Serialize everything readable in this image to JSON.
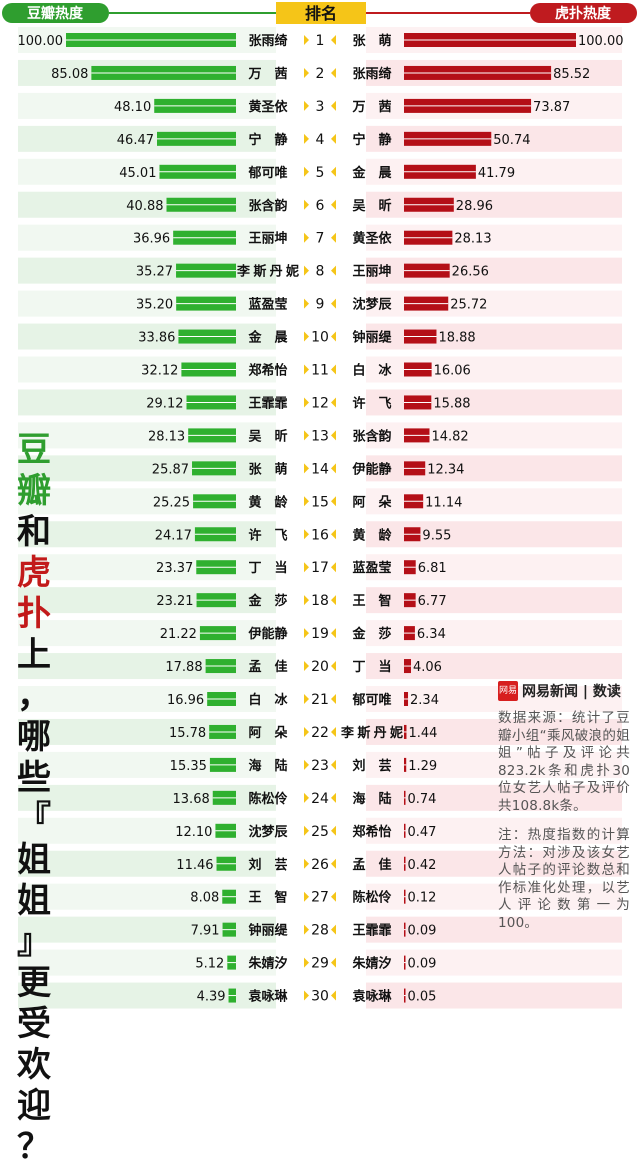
{
  "header": {
    "left_label": "豆瓣热度",
    "center_label": "排名",
    "right_label": "虎扑热度"
  },
  "colors": {
    "douban_green": "#2fb02f",
    "douban_header": "#2f9e2f",
    "hupu_red": "#b40f17",
    "hupu_header": "#bf1b1f",
    "rank_header": "#f5c518",
    "row_left_bg": "#e6f3e6",
    "row_right_bg": "#fbe6e8"
  },
  "title": {
    "segments": [
      {
        "text": "豆瓣",
        "color": "#2f9e2f"
      },
      {
        "text": "和",
        "color": "#111111"
      },
      {
        "text": "虎扑",
        "color": "#c21a1a"
      },
      {
        "text": "上，哪些『姐姐』更受欢迎？",
        "color": "#111111"
      }
    ]
  },
  "logo": {
    "mark": "网易",
    "text": "网易新闻 | 数读"
  },
  "source_text": "数据来源：统计了豆瓣小组“乘风破浪的姐姐”帖子及评论共823.2k条和虎扑30位女艺人帖子及评价共108.8k条。",
  "note_text": "注：热度指数的计算方法：对涉及该女艺人帖子的评论数总和作标准化处理，以艺人评论数第一为100。",
  "chart_data": {
    "type": "bar",
    "ranks": [
      1,
      2,
      3,
      4,
      5,
      6,
      7,
      8,
      9,
      10,
      11,
      12,
      13,
      14,
      15,
      16,
      17,
      18,
      19,
      20,
      21,
      22,
      23,
      24,
      25,
      26,
      27,
      28,
      29,
      30
    ],
    "series": [
      {
        "name": "豆瓣热度",
        "names": [
          "张雨绮",
          "万　茜",
          "黄圣依",
          "宁　静",
          "郁可唯",
          "张含韵",
          "王丽坤",
          "李斯丹妮",
          "蓝盈莹",
          "金　晨",
          "郑希怡",
          "王霏霏",
          "吴　昕",
          "张　萌",
          "黄　龄",
          "许　飞",
          "丁　当",
          "金　莎",
          "伊能静",
          "孟　佳",
          "白　冰",
          "阿　朵",
          "海　陆",
          "陈松伶",
          "沈梦辰",
          "刘　芸",
          "王　智",
          "钟丽缇",
          "朱婧汐",
          "袁咏琳"
        ],
        "values": [
          "100.00",
          "85.08",
          "48.10",
          "46.47",
          "45.01",
          "40.88",
          "36.96",
          "35.27",
          "35.20",
          "33.86",
          "32.12",
          "29.12",
          "28.13",
          "25.87",
          "25.25",
          "24.17",
          "23.37",
          "23.21",
          "21.22",
          "17.88",
          "16.96",
          "15.78",
          "15.35",
          "13.68",
          "12.10",
          "11.46",
          "8.08",
          "7.91",
          "5.12",
          "4.39"
        ]
      },
      {
        "name": "虎扑热度",
        "names": [
          "张　萌",
          "张雨绮",
          "万　茜",
          "宁　静",
          "金　晨",
          "吴　昕",
          "黄圣依",
          "王丽坤",
          "沈梦辰",
          "钟丽缇",
          "白　冰",
          "许　飞",
          "张含韵",
          "伊能静",
          "阿　朵",
          "黄　龄",
          "蓝盈莹",
          "王　智",
          "金　莎",
          "丁　当",
          "郁可唯",
          "李斯丹妮",
          "刘　芸",
          "海　陆",
          "郑希怡",
          "孟　佳",
          "陈松伶",
          "王霏霏",
          "朱婧汐",
          "袁咏琳"
        ],
        "values": [
          "100.00",
          "85.52",
          "73.87",
          "50.74",
          "41.79",
          "28.96",
          "28.13",
          "26.56",
          "25.72",
          "18.88",
          "16.06",
          "15.88",
          "14.82",
          "12.34",
          "11.14",
          "9.55",
          "6.81",
          "6.77",
          "6.34",
          "4.06",
          "2.34",
          "1.44",
          "1.29",
          "0.74",
          "0.47",
          "0.42",
          "0.12",
          "0.09",
          "0.09",
          "0.05"
        ]
      }
    ],
    "xlim": [
      0,
      100
    ]
  }
}
